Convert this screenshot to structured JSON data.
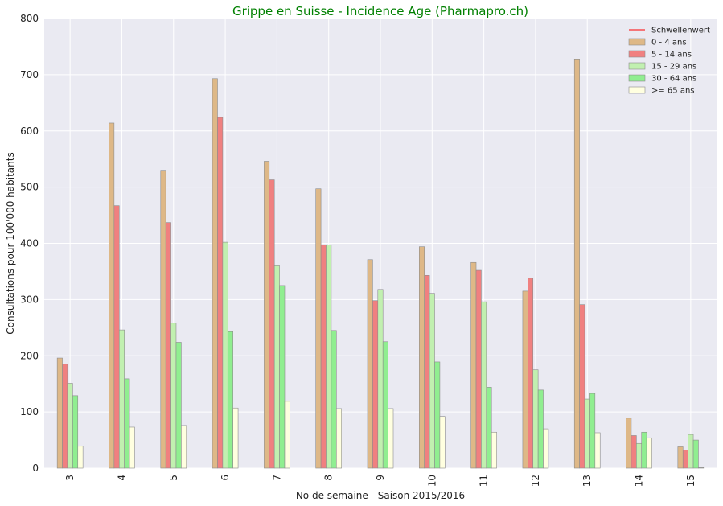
{
  "chart_data": {
    "type": "bar",
    "title": "Grippe en Suisse - Incidence Age (Pharmapro.ch)",
    "xlabel": "No de semaine - Saison 2015/2016",
    "ylabel": "Consultations pour 100'000 habitants",
    "ylim": [
      0,
      800
    ],
    "yticks": [
      0,
      100,
      200,
      300,
      400,
      500,
      600,
      700,
      800
    ],
    "grid": true,
    "legend_position": "top-right",
    "categories": [
      "3",
      "4",
      "5",
      "6",
      "7",
      "8",
      "9",
      "10",
      "11",
      "12",
      "13",
      "14",
      "15"
    ],
    "threshold": {
      "name": "Schwellenwert",
      "value": 68,
      "color": "#ff0000"
    },
    "series": [
      {
        "name": "0 - 4 ans",
        "color": "#deb887",
        "values": [
          196,
          614,
          530,
          693,
          546,
          497,
          371,
          394,
          366,
          315,
          728,
          89,
          38
        ]
      },
      {
        "name": "5 - 14 ans",
        "color": "#f08080",
        "values": [
          185,
          467,
          437,
          624,
          513,
          397,
          298,
          343,
          352,
          338,
          291,
          58,
          32
        ]
      },
      {
        "name": "15 - 29 ans",
        "color": "#c1f0b0",
        "values": [
          151,
          246,
          258,
          402,
          360,
          397,
          318,
          311,
          296,
          175,
          123,
          44,
          60
        ]
      },
      {
        "name": "30 - 64 ans",
        "color": "#90ee90",
        "values": [
          129,
          159,
          224,
          243,
          325,
          245,
          225,
          189,
          144,
          139,
          133,
          64,
          50
        ]
      },
      {
        "name": ">= 65 ans",
        "color": "#ffffe0",
        "values": [
          39,
          73,
          76,
          107,
          119,
          106,
          106,
          92,
          64,
          70,
          63,
          54,
          1
        ]
      }
    ]
  }
}
